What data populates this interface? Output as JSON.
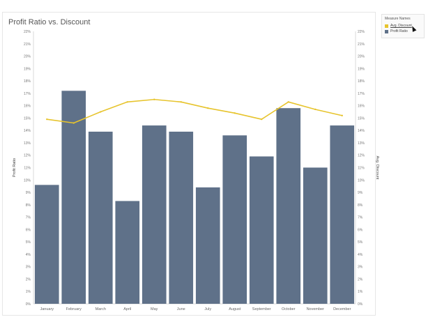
{
  "title": "Profit Ratio vs. Discount",
  "legend": {
    "title": "Measure Names",
    "items": [
      {
        "label": "Avg. Discount",
        "color": "#e7c42d"
      },
      {
        "label": "Profit Ratio",
        "color": "#5f7189"
      }
    ]
  },
  "chart_data": {
    "type": "bar",
    "categories": [
      "January",
      "February",
      "March",
      "April",
      "May",
      "June",
      "July",
      "August",
      "September",
      "October",
      "November",
      "December"
    ],
    "series": [
      {
        "name": "Profit Ratio",
        "type": "bar",
        "axis": "left",
        "color": "#5f7189",
        "values": [
          9.6,
          17.2,
          13.9,
          8.3,
          14.4,
          13.9,
          9.4,
          13.6,
          11.9,
          15.8,
          11.0,
          14.4
        ]
      },
      {
        "name": "Avg. Discount",
        "type": "line",
        "axis": "right",
        "color": "#e7c42d",
        "values": [
          14.9,
          14.6,
          15.5,
          16.3,
          16.5,
          16.3,
          15.8,
          15.4,
          14.9,
          16.3,
          15.7,
          15.2
        ]
      }
    ],
    "ylabel_left": "Profit Ratio",
    "ylabel_right": "Avg. Discount",
    "ylim": [
      0,
      22
    ],
    "yticks": [
      "0%",
      "1%",
      "2%",
      "3%",
      "4%",
      "5%",
      "6%",
      "7%",
      "8%",
      "9%",
      "10%",
      "11%",
      "12%",
      "13%",
      "14%",
      "15%",
      "16%",
      "17%",
      "18%",
      "19%",
      "20%",
      "21%",
      "22%"
    ],
    "grid": false,
    "legend_position": "top-right"
  }
}
